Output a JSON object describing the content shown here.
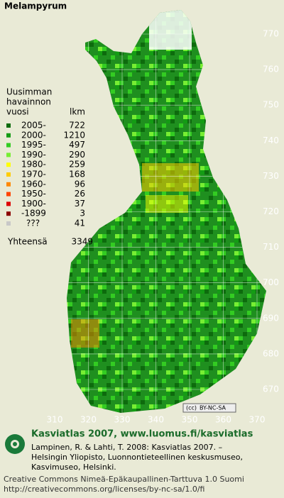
{
  "title": "Melampyrum",
  "legend": {
    "header": [
      "Uusimman",
      "havainnon",
      "vuosi"
    ],
    "count_header": "lkm",
    "rows": [
      {
        "label": "2005-",
        "count": 722,
        "color": "#0d6b0d"
      },
      {
        "label": "2000-",
        "count": 1210,
        "color": "#149c14"
      },
      {
        "label": "1995-",
        "count": 497,
        "color": "#33cc22"
      },
      {
        "label": "1990-",
        "count": 290,
        "color": "#77ee33"
      },
      {
        "label": "1980-",
        "count": 259,
        "color": "#ffff00"
      },
      {
        "label": "1970-",
        "count": 168,
        "color": "#ffcc00"
      },
      {
        "label": "1960-",
        "count": 96,
        "color": "#ff8800"
      },
      {
        "label": "1950-",
        "count": 26,
        "color": "#ff4400"
      },
      {
        "label": "1900-",
        "count": 37,
        "color": "#dd0000"
      },
      {
        "label": "-1899",
        "count": 3,
        "color": "#8b0000"
      },
      {
        "label": "???",
        "count": 41,
        "color": "#c8c8c8"
      }
    ],
    "total_label": "Yhteensä",
    "total": 3349
  },
  "map": {
    "xticks": [
      310,
      320,
      330,
      340,
      350,
      360,
      370
    ],
    "yticks": [
      770,
      760,
      750,
      740,
      730,
      720,
      710,
      700,
      690,
      680,
      670
    ]
  },
  "badge": "BY-NC-SA",
  "footer": {
    "heading": "Kasviatlas 2007, www.luomus.fi/kasviatlas",
    "citation": [
      "Lampinen, R. & Lahti, T. 2008: Kasviatlas 2007. –",
      "Helsingin Yliopisto, Luonnontieteellinen keskusmuseo,",
      "Kasvimuseo, Helsinki."
    ],
    "license": [
      "Creative Commons Nimeä-Epäkaupallinen-Tarttuva 1.0 Suomi",
      "http://creativecommons.org/licenses/by-nc-sa/1.0/fi"
    ]
  }
}
